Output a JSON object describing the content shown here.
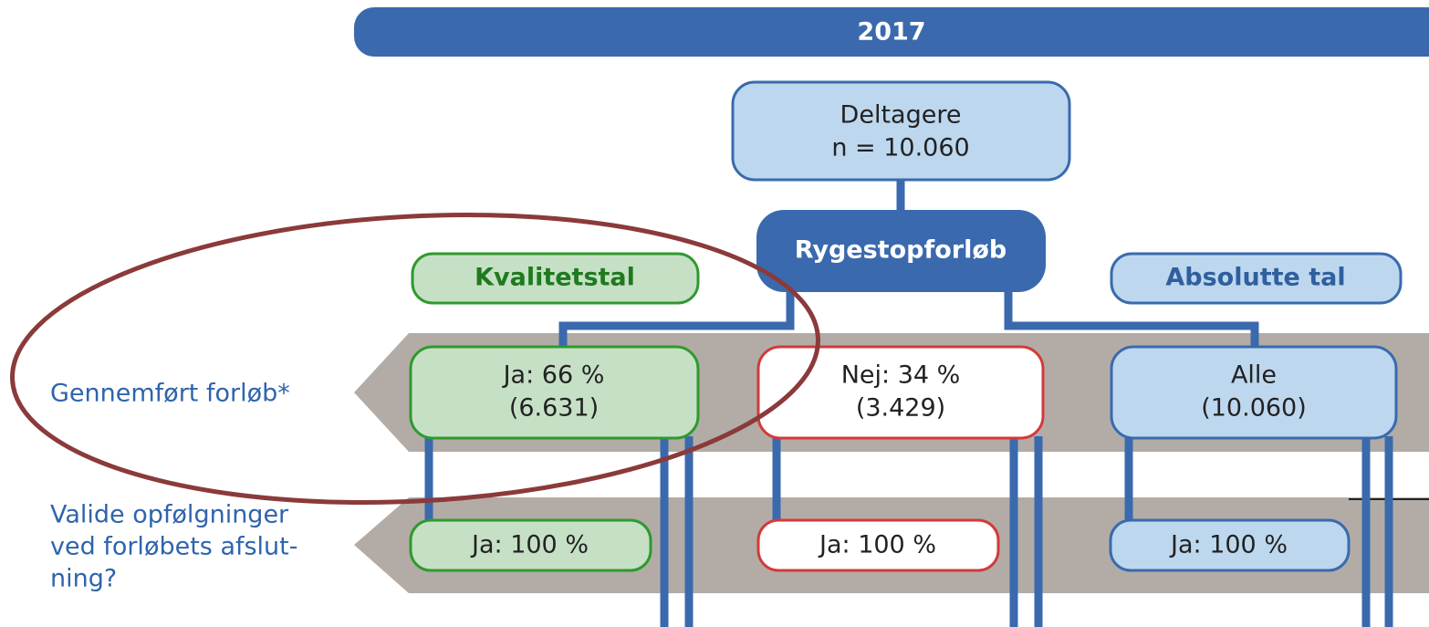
{
  "header": {
    "year": "2017"
  },
  "top": {
    "title": "Deltagere",
    "count": "n = 10.060"
  },
  "course": {
    "label": "Rygestopforløb"
  },
  "columns": {
    "quality": "Kvalitetstal",
    "absolute": "Absolutte tal"
  },
  "rows": [
    {
      "label": [
        "Gennemført forløb*"
      ],
      "cells": [
        [
          "Ja: 66 %",
          "(6.631)"
        ],
        [
          "Nej: 34 %",
          "(3.429)"
        ],
        [
          "Alle",
          "(10.060)"
        ]
      ]
    },
    {
      "label": [
        "Valide opfølgninger",
        "ved forløbets afslut-",
        "ning?"
      ],
      "cells": [
        [
          "Ja: 100 %"
        ],
        [
          "Ja: 100 %"
        ],
        [
          "Ja: 100 %"
        ]
      ]
    }
  ]
}
